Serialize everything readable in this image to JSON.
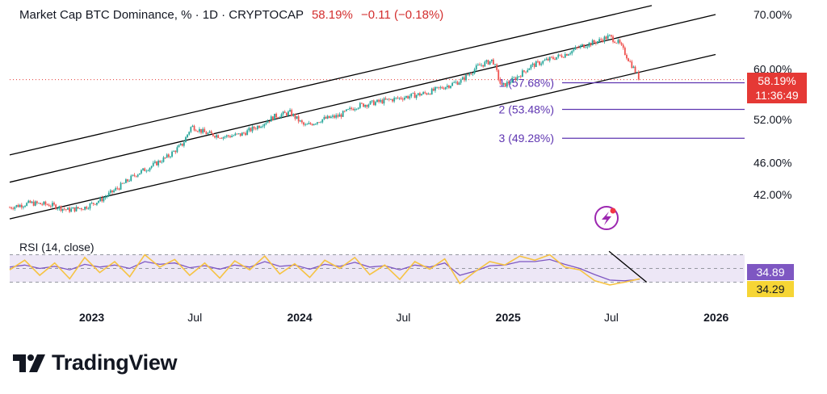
{
  "header": {
    "title": "Market Cap BTC Dominance, % · 1D · CRYPTOCAP",
    "last_value": "58.19%",
    "change": "−0.11 (−0.18%)"
  },
  "price_tag": {
    "value": "58.19%",
    "countdown": "11:36:49"
  },
  "rsi": {
    "label": "RSI (14, close)",
    "rsi_value": "34.89",
    "ma_value": "34.29"
  },
  "brand": {
    "name": "TradingView"
  },
  "colors": {
    "up": "#26a69a",
    "down": "#ef5350",
    "channel": "#000000",
    "fib": "#5e35b1",
    "rsi_line": "#7e57c2",
    "rsi_ma": "#f6c343",
    "price_tag": "#e53935"
  },
  "icons": [
    "tradingview-logo-icon",
    "lightning-alert-icon"
  ],
  "chart_data": [
    {
      "type": "line",
      "name": "price",
      "x_ticks": [
        "2023",
        "Jul",
        "2024",
        "Jul",
        "2025",
        "Jul",
        "2026"
      ],
      "y_ticks": [
        "70.00%",
        "60.00%",
        "52.00%",
        "46.00%",
        "42.00%"
      ],
      "y_tick_values": [
        70,
        60,
        52,
        46,
        42
      ],
      "scale": "log",
      "ylim": [
        39,
        72
      ],
      "x": [
        "2022-08-10",
        "2022-09-15",
        "2022-10-20",
        "2022-11-20",
        "2022-12-20",
        "2023-01-20",
        "2023-02-20",
        "2023-03-20",
        "2023-04-15",
        "2023-05-15",
        "2023-06-10",
        "2023-06-25",
        "2023-07-20",
        "2023-08-20",
        "2023-09-20",
        "2023-10-20",
        "2023-11-20",
        "2023-12-15",
        "2024-01-10",
        "2024-02-10",
        "2024-03-10",
        "2024-04-10",
        "2024-05-10",
        "2024-06-10",
        "2024-07-10",
        "2024-08-10",
        "2024-09-10",
        "2024-10-10",
        "2024-11-10",
        "2024-12-05",
        "2024-12-20",
        "2025-01-15",
        "2025-02-10",
        "2025-03-10",
        "2025-04-10",
        "2025-05-10",
        "2025-06-10",
        "2025-06-27",
        "2025-07-15",
        "2025-08-01",
        "2025-08-20"
      ],
      "values": [
        40.5,
        41.0,
        40.8,
        40.2,
        40.5,
        41.5,
        43.0,
        44.5,
        45.5,
        46.8,
        48.5,
        51.0,
        50.0,
        49.5,
        49.8,
        51.0,
        52.5,
        53.0,
        51.0,
        52.0,
        52.5,
        54.0,
        54.5,
        55.0,
        55.5,
        56.0,
        57.0,
        58.0,
        60.5,
        61.5,
        57.0,
        58.5,
        60.5,
        61.5,
        62.5,
        64.0,
        65.0,
        65.8,
        64.5,
        61.5,
        58.19
      ],
      "channel_lines": [
        {
          "x": [
            "2022-08-10",
            "2025-09-10"
          ],
          "y": [
            47.0,
            71.8
          ]
        },
        {
          "x": [
            "2022-08-10",
            "2025-12-31"
          ],
          "y": [
            43.5,
            70.0
          ]
        },
        {
          "x": [
            "2022-08-10",
            "2025-12-31"
          ],
          "y": [
            39.2,
            62.5
          ]
        }
      ],
      "fib_levels": [
        {
          "label": "1 (57.68%)",
          "value": 57.68
        },
        {
          "label": "2 (53.48%)",
          "value": 53.48
        },
        {
          "label": "3 (49.28%)",
          "value": 49.28
        }
      ],
      "last_value": 58.19
    },
    {
      "type": "line",
      "name": "RSI (14, close)",
      "ylim": [
        0,
        100
      ],
      "bands": [
        70,
        50,
        30
      ],
      "series": [
        {
          "name": "RSI",
          "values": [
            48,
            62,
            40,
            58,
            35,
            66,
            44,
            60,
            38,
            70,
            52,
            63,
            40,
            58,
            36,
            61,
            48,
            68,
            42,
            57,
            37,
            62,
            50,
            66,
            41,
            55,
            34,
            60,
            49,
            64,
            28,
            45,
            60,
            55,
            68,
            62,
            70,
            52,
            48,
            32,
            26,
            30,
            34.89
          ]
        },
        {
          "name": "MA",
          "values": [
            52,
            55,
            50,
            53,
            48,
            56,
            52,
            55,
            50,
            60,
            56,
            58,
            51,
            54,
            49,
            55,
            52,
            60,
            53,
            55,
            49,
            56,
            53,
            59,
            52,
            54,
            48,
            55,
            52,
            58,
            40,
            46,
            54,
            55,
            60,
            60,
            63,
            56,
            50,
            41,
            33,
            32,
            34.29
          ]
        }
      ],
      "trendline": {
        "x": [
          "2025-06-27",
          "2025-09-01"
        ],
        "y": [
          75,
          30
        ]
      }
    }
  ]
}
